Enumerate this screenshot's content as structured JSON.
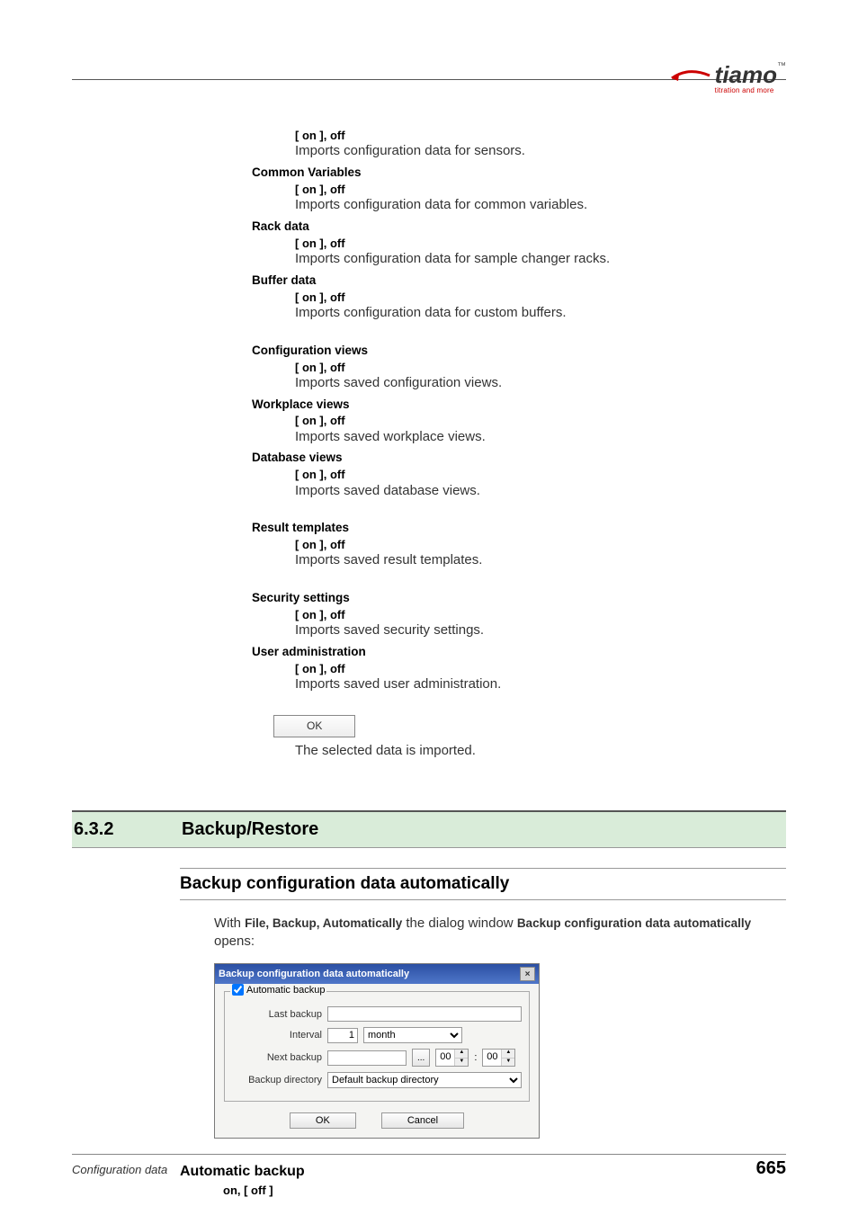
{
  "logo": {
    "brand": "tiamo",
    "tm": "™",
    "tagline": "titration and more"
  },
  "options": [
    {
      "group": null,
      "val": "[ on ], off",
      "desc": "Imports configuration data for sensors."
    },
    {
      "group": "Common Variables",
      "val": "[ on ], off",
      "desc": "Imports configuration data for common variables."
    },
    {
      "group": "Rack data",
      "val": "[ on ], off",
      "desc": "Imports configuration data for sample changer racks."
    },
    {
      "group": "Buffer data",
      "val": "[ on ], off",
      "desc": "Imports configuration data for custom buffers."
    },
    {
      "spacer": true
    },
    {
      "group": "Configuration views",
      "val": "[ on ], off",
      "desc": "Imports saved configuration views."
    },
    {
      "group": "Workplace views",
      "val": "[ on ], off",
      "desc": "Imports saved workplace views."
    },
    {
      "group": "Database views",
      "val": "[ on ], off",
      "desc": "Imports saved database views."
    },
    {
      "spacer": true
    },
    {
      "group": "Result templates",
      "val": "[ on ], off",
      "desc": "Imports saved result templates."
    },
    {
      "spacer": true
    },
    {
      "group": "Security settings",
      "val": "[ on ], off",
      "desc": "Imports saved security settings."
    },
    {
      "group": "User administration",
      "val": "[ on ], off",
      "desc": "Imports saved user administration."
    }
  ],
  "okButton": {
    "label": "OK",
    "desc": "The selected data is imported."
  },
  "section": {
    "num": "6.3.2",
    "title": "Backup/Restore"
  },
  "sub": {
    "title": "Backup configuration data automatically",
    "intro_pre": "With ",
    "intro_bold1": "File, Backup, Automatically",
    "intro_mid": " the dialog window ",
    "intro_bold2": "Backup configuration data automatically",
    "intro_post": " opens:"
  },
  "dialog": {
    "title": "Backup configuration data automatically",
    "legend": "Automatic backup",
    "rows": {
      "lastBackup": {
        "label": "Last backup",
        "value": ""
      },
      "interval": {
        "label": "Interval",
        "value": "1",
        "unit": "month"
      },
      "nextBackup": {
        "label": "Next backup",
        "value": "",
        "hh": "00",
        "mm": "00"
      },
      "backupDir": {
        "label": "Backup directory",
        "value": "Default backup directory"
      }
    },
    "ok": "OK",
    "cancel": "Cancel"
  },
  "autoBackup": {
    "head": "Automatic backup",
    "val": "on, [ off ]"
  },
  "footer": {
    "left": "Configuration data",
    "page": "665"
  }
}
